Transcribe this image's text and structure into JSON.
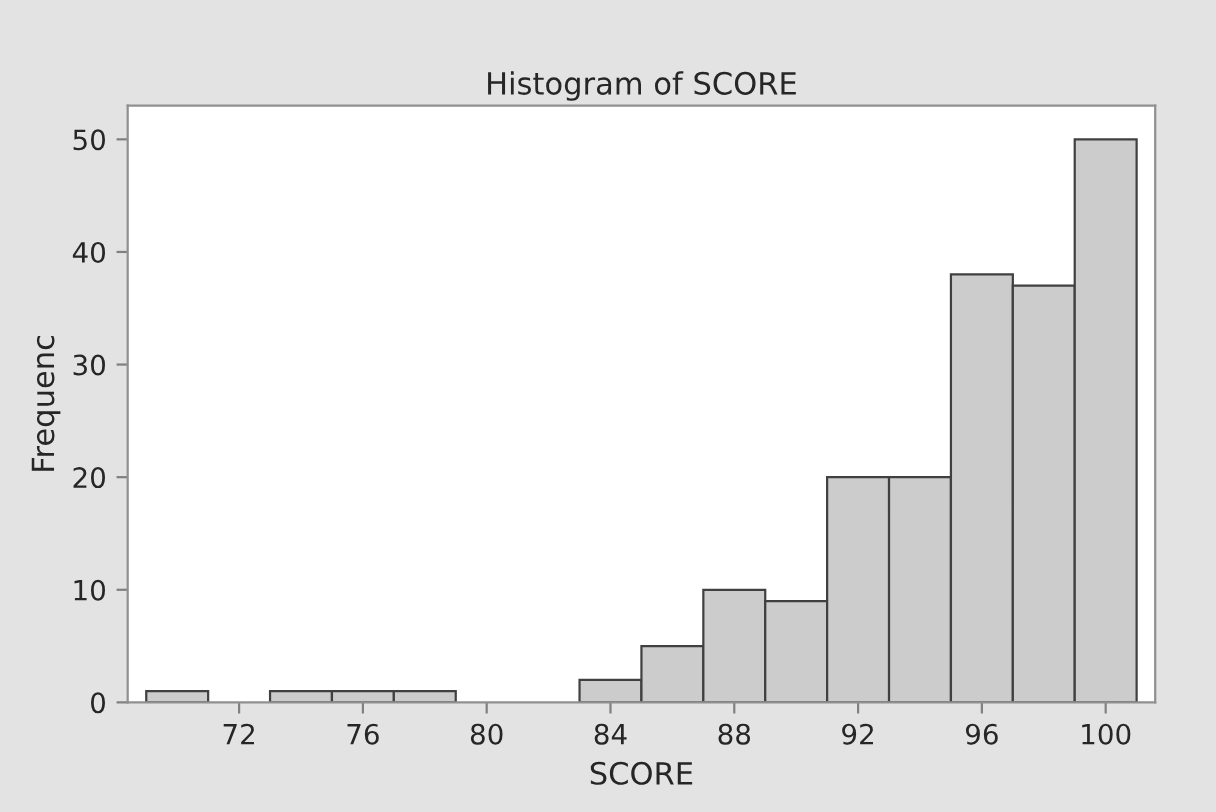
{
  "chart_data": {
    "type": "histogram",
    "title": "Histogram of SCORE",
    "xlabel": "SCORE",
    "ylabel": "Frequenc",
    "bins": [
      69,
      71,
      73,
      75,
      77,
      79,
      81,
      83,
      85,
      87,
      89,
      91,
      93,
      95,
      97,
      99,
      101
    ],
    "values": [
      1,
      0,
      1,
      1,
      1,
      0,
      0,
      2,
      5,
      10,
      9,
      20,
      20,
      38,
      37,
      50
    ],
    "color": "#cccccc",
    "xlim": [
      68.4,
      101.6
    ],
    "xticks": [
      72,
      76,
      80,
      84,
      88,
      92,
      96,
      100
    ],
    "ylim": [
      0,
      53
    ],
    "yticks": [
      0,
      10,
      20,
      30,
      40,
      50
    ],
    "grid": false
  }
}
